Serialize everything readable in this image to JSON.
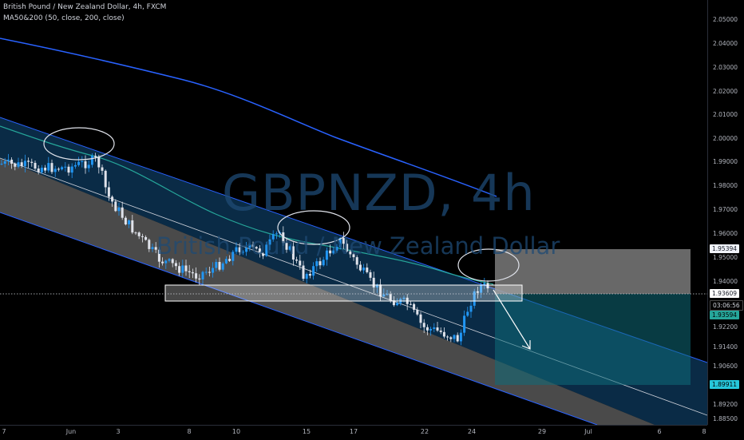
{
  "symbol_line": "British Pound / New Zealand Dollar, 4h, FXCM",
  "indicator_line": "MA50&200 (50, close, 200, close)",
  "watermark": {
    "symbol": "GBPNZD, 4h",
    "description": "British Pound / New Zealand Dollar"
  },
  "price_axis": {
    "ticks": [
      "2.05000",
      "2.04000",
      "2.03000",
      "2.02000",
      "2.01000",
      "2.00000",
      "1.99000",
      "1.98000",
      "1.97000",
      "1.96000",
      "1.95000",
      "1.94000",
      "1.92200",
      "1.91400",
      "1.90600",
      "1.89200",
      "1.88500"
    ],
    "badges": {
      "target": "1.95394",
      "current": "1.93609",
      "countdown": "03:06:56",
      "entry": "1.93594",
      "stop": "1.89911"
    }
  },
  "time_axis": {
    "labels": [
      "7",
      "Jun",
      "3",
      "8",
      "10",
      "15",
      "17",
      "22",
      "24",
      "29",
      "Jul",
      "6",
      "8"
    ]
  },
  "colors": {
    "background": "#000000",
    "bull_candle": "#2196f3",
    "bear_candle": "#e0e3eb",
    "ma50": "#26a69a",
    "ma200": "#2962ff",
    "channel_upper_fill": "#0c2f4c",
    "channel_lower_fill": "#5a5a5a",
    "badge_current": "#ffffff",
    "badge_entry": "#26a69a",
    "badge_stop": "#26c6da"
  }
}
